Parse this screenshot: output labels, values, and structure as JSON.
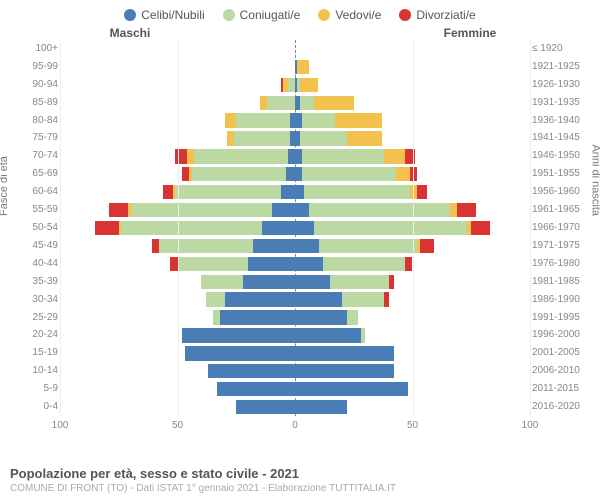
{
  "type": "population-pyramid",
  "legend": [
    {
      "label": "Celibi/Nubili",
      "color": "#4a7db5"
    },
    {
      "label": "Coniugati/e",
      "color": "#bcd9a4"
    },
    {
      "label": "Vedovi/e",
      "color": "#f3c14e"
    },
    {
      "label": "Divorziati/e",
      "color": "#d93333"
    }
  ],
  "header_left": "Maschi",
  "header_right": "Femmine",
  "yaxis_left_title": "Fasce di età",
  "yaxis_right_title": "Anni di nascita",
  "xlim": 100,
  "xticks": [
    100,
    50,
    0,
    50,
    100
  ],
  "xtick_labels": [
    "100",
    "50",
    "0",
    "50",
    "100"
  ],
  "title": "Popolazione per età, sesso e stato civile - 2021",
  "subtitle": "COMUNE DI FRONT (TO) - Dati ISTAT 1° gennaio 2021 - Elaborazione TUTTITALIA.IT",
  "background_color": "#ffffff",
  "grid_color": "#eeeeee",
  "center_line_color": "#888888",
  "text_color": "#888888",
  "rows": [
    {
      "age": "100+",
      "birth": "≤ 1920",
      "m": {
        "single": 0,
        "married": 0,
        "widowed": 0,
        "divorced": 0
      },
      "f": {
        "single": 0,
        "married": 0,
        "widowed": 0,
        "divorced": 0
      }
    },
    {
      "age": "95-99",
      "birth": "1921-1925",
      "m": {
        "single": 0,
        "married": 0,
        "widowed": 0,
        "divorced": 0
      },
      "f": {
        "single": 1,
        "married": 0,
        "widowed": 5,
        "divorced": 0
      }
    },
    {
      "age": "90-94",
      "birth": "1926-1930",
      "m": {
        "single": 0,
        "married": 3,
        "widowed": 2,
        "divorced": 1
      },
      "f": {
        "single": 1,
        "married": 1,
        "widowed": 8,
        "divorced": 0
      }
    },
    {
      "age": "85-89",
      "birth": "1931-1935",
      "m": {
        "single": 0,
        "married": 12,
        "widowed": 3,
        "divorced": 0
      },
      "f": {
        "single": 2,
        "married": 6,
        "widowed": 17,
        "divorced": 0
      }
    },
    {
      "age": "80-84",
      "birth": "1936-1940",
      "m": {
        "single": 2,
        "married": 23,
        "widowed": 5,
        "divorced": 0
      },
      "f": {
        "single": 3,
        "married": 14,
        "widowed": 20,
        "divorced": 0
      }
    },
    {
      "age": "75-79",
      "birth": "1941-1945",
      "m": {
        "single": 2,
        "married": 24,
        "widowed": 3,
        "divorced": 0
      },
      "f": {
        "single": 2,
        "married": 20,
        "widowed": 15,
        "divorced": 0
      }
    },
    {
      "age": "70-74",
      "birth": "1946-1950",
      "m": {
        "single": 3,
        "married": 40,
        "widowed": 3,
        "divorced": 5
      },
      "f": {
        "single": 3,
        "married": 35,
        "widowed": 9,
        "divorced": 4
      }
    },
    {
      "age": "65-69",
      "birth": "1951-1955",
      "m": {
        "single": 4,
        "married": 40,
        "widowed": 1,
        "divorced": 3
      },
      "f": {
        "single": 3,
        "married": 40,
        "widowed": 6,
        "divorced": 3
      }
    },
    {
      "age": "60-64",
      "birth": "1956-1960",
      "m": {
        "single": 6,
        "married": 45,
        "widowed": 1,
        "divorced": 4
      },
      "f": {
        "single": 4,
        "married": 45,
        "widowed": 3,
        "divorced": 4
      }
    },
    {
      "age": "55-59",
      "birth": "1961-1965",
      "m": {
        "single": 10,
        "married": 60,
        "widowed": 1,
        "divorced": 8
      },
      "f": {
        "single": 6,
        "married": 60,
        "widowed": 3,
        "divorced": 8
      }
    },
    {
      "age": "50-54",
      "birth": "1966-1970",
      "m": {
        "single": 14,
        "married": 60,
        "widowed": 1,
        "divorced": 10
      },
      "f": {
        "single": 8,
        "married": 65,
        "widowed": 2,
        "divorced": 8
      }
    },
    {
      "age": "45-49",
      "birth": "1971-1975",
      "m": {
        "single": 18,
        "married": 40,
        "widowed": 0,
        "divorced": 3
      },
      "f": {
        "single": 10,
        "married": 42,
        "widowed": 1,
        "divorced": 6
      }
    },
    {
      "age": "40-44",
      "birth": "1976-1980",
      "m": {
        "single": 20,
        "married": 30,
        "widowed": 0,
        "divorced": 3
      },
      "f": {
        "single": 12,
        "married": 35,
        "widowed": 0,
        "divorced": 3
      }
    },
    {
      "age": "35-39",
      "birth": "1981-1985",
      "m": {
        "single": 22,
        "married": 18,
        "widowed": 0,
        "divorced": 0
      },
      "f": {
        "single": 15,
        "married": 25,
        "widowed": 0,
        "divorced": 2
      }
    },
    {
      "age": "30-34",
      "birth": "1986-1990",
      "m": {
        "single": 30,
        "married": 8,
        "widowed": 0,
        "divorced": 0
      },
      "f": {
        "single": 20,
        "married": 18,
        "widowed": 0,
        "divorced": 2
      }
    },
    {
      "age": "25-29",
      "birth": "1991-1995",
      "m": {
        "single": 32,
        "married": 3,
        "widowed": 0,
        "divorced": 0
      },
      "f": {
        "single": 22,
        "married": 5,
        "widowed": 0,
        "divorced": 0
      }
    },
    {
      "age": "20-24",
      "birth": "1996-2000",
      "m": {
        "single": 48,
        "married": 0,
        "widowed": 0,
        "divorced": 0
      },
      "f": {
        "single": 28,
        "married": 2,
        "widowed": 0,
        "divorced": 0
      }
    },
    {
      "age": "15-19",
      "birth": "2001-2005",
      "m": {
        "single": 47,
        "married": 0,
        "widowed": 0,
        "divorced": 0
      },
      "f": {
        "single": 42,
        "married": 0,
        "widowed": 0,
        "divorced": 0
      }
    },
    {
      "age": "10-14",
      "birth": "2006-2010",
      "m": {
        "single": 37,
        "married": 0,
        "widowed": 0,
        "divorced": 0
      },
      "f": {
        "single": 42,
        "married": 0,
        "widowed": 0,
        "divorced": 0
      }
    },
    {
      "age": "5-9",
      "birth": "2011-2015",
      "m": {
        "single": 33,
        "married": 0,
        "widowed": 0,
        "divorced": 0
      },
      "f": {
        "single": 48,
        "married": 0,
        "widowed": 0,
        "divorced": 0
      }
    },
    {
      "age": "0-4",
      "birth": "2016-2020",
      "m": {
        "single": 25,
        "married": 0,
        "widowed": 0,
        "divorced": 0
      },
      "f": {
        "single": 22,
        "married": 0,
        "widowed": 0,
        "divorced": 0
      }
    }
  ]
}
